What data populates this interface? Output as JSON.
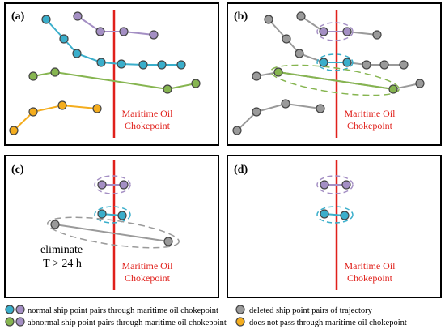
{
  "panels": {
    "a": {
      "label": "(a)"
    },
    "b": {
      "label": "(b)"
    },
    "c": {
      "label": "(c)",
      "note_line1": "eliminate",
      "note_line2": "T > 24 h"
    },
    "d": {
      "label": "(d)"
    }
  },
  "chokepoint": {
    "line1": "Maritime Oil",
    "line2": "Chokepoint",
    "color": "#e0201b"
  },
  "colors": {
    "cyan": "#3aaecb",
    "purple": "#a48fc4",
    "green": "#86b550",
    "orange": "#f4ad1e",
    "gray": "#9a9a9a"
  },
  "legend": [
    {
      "text": "normal ship point pairs through maritime oil chokepoint",
      "icons": [
        "cyan",
        "purple"
      ]
    },
    {
      "text": "deleted ship point pairs of trajectory",
      "icons": [
        "gray"
      ]
    },
    {
      "text": "abnormal ship point pairs through maritime oil chokepoint",
      "icons": [
        "green",
        "purple"
      ]
    },
    {
      "text": "does not pass through maritime oil chokepoint",
      "icons": [
        "orange"
      ]
    }
  ]
}
